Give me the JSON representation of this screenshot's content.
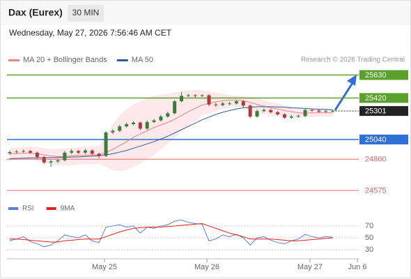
{
  "header": {
    "title": "Dax (Eurex)",
    "interval": "30 MIN",
    "timestamp": "Wednesday, May 27, 2026 7:56:46 AM CET",
    "copyright": "Research © 2026 Trading Central"
  },
  "chart_data": [
    {
      "type": "candlestick",
      "up_color": "#3a7d3a",
      "down_color": "#b03a3a",
      "open": [
        24915,
        24925,
        24930,
        24935,
        24920,
        24880,
        24830,
        24840,
        24850,
        24920,
        24935,
        24920,
        24940,
        24910,
        24890,
        25105,
        25120,
        25160,
        25180,
        25195,
        25140,
        25200,
        25215,
        25250,
        25280,
        25390,
        25440,
        25445,
        25440,
        25445,
        25360,
        25355,
        25370,
        25370,
        25390,
        25350,
        25250,
        25300,
        25310,
        25290,
        25270,
        25240,
        25250,
        25255,
        25310,
        25305,
        25295,
        25300
      ],
      "high": [
        24940,
        24945,
        24950,
        24945,
        24930,
        24890,
        24855,
        24865,
        24935,
        24955,
        24945,
        24955,
        24950,
        24920,
        25115,
        25135,
        25175,
        25195,
        25210,
        25205,
        25215,
        25230,
        25265,
        25295,
        25400,
        25475,
        25460,
        25455,
        25455,
        25455,
        25375,
        25385,
        25385,
        25400,
        25400,
        25360,
        25315,
        25325,
        25320,
        25300,
        25280,
        25265,
        25270,
        25325,
        25320,
        25315,
        25310,
        25310
      ],
      "low": [
        24900,
        24910,
        24920,
        24910,
        24865,
        24815,
        24790,
        24825,
        24840,
        24905,
        24905,
        24905,
        24895,
        24870,
        24880,
        25090,
        25110,
        25150,
        25170,
        25125,
        25130,
        25190,
        25205,
        25240,
        25270,
        25380,
        25430,
        25425,
        25430,
        25345,
        25340,
        25345,
        25355,
        25360,
        25335,
        25235,
        25240,
        25290,
        25280,
        25260,
        25230,
        25230,
        25240,
        25245,
        25295,
        25285,
        25285,
        25290
      ],
      "close": [
        24925,
        24930,
        24935,
        24920,
        24880,
        24830,
        24840,
        24850,
        24920,
        24935,
        24920,
        24940,
        24910,
        24890,
        25105,
        25120,
        25160,
        25180,
        25195,
        25140,
        25200,
        25215,
        25250,
        25280,
        25390,
        25440,
        25445,
        25440,
        25445,
        25360,
        25355,
        25370,
        25370,
        25390,
        25350,
        25250,
        25300,
        25310,
        25290,
        25270,
        25240,
        25250,
        25255,
        25310,
        25305,
        25295,
        25300,
        25301
      ],
      "lines": [
        {
          "name": "MA 20 + Bollinger Bands",
          "color": "#f08080",
          "band_color": "#fde3e3",
          "values": [
            24910,
            24912,
            24915,
            24915,
            24910,
            24900,
            24890,
            24885,
            24885,
            24890,
            24895,
            24895,
            24900,
            24900,
            24920,
            24950,
            24985,
            25020,
            25060,
            25090,
            25120,
            25150,
            25175,
            25195,
            25225,
            25260,
            25295,
            25325,
            25355,
            25370,
            25385,
            25395,
            25400,
            25400,
            25395,
            25380,
            25360,
            25345,
            25330,
            25320,
            25305,
            25295,
            25285,
            25280,
            25285,
            25285,
            25285,
            25285
          ],
          "upper": [
            24960,
            24965,
            24970,
            24975,
            24975,
            24960,
            24955,
            24955,
            24960,
            24965,
            24970,
            24970,
            24975,
            24980,
            25080,
            25180,
            25260,
            25320,
            25360,
            25390,
            25420,
            25440,
            25450,
            25460,
            25470,
            25480,
            25490,
            25495,
            25490,
            25480,
            25470,
            25460,
            25445,
            25440,
            25435,
            25430,
            25420,
            25400,
            25380,
            25370,
            25355,
            25345,
            25335,
            25325,
            25320,
            25320,
            25320,
            25320
          ],
          "lower": [
            24860,
            24860,
            24860,
            24855,
            24845,
            24830,
            24815,
            24805,
            24800,
            24805,
            24810,
            24815,
            24815,
            24815,
            24790,
            24760,
            24750,
            24760,
            24790,
            24820,
            24860,
            24900,
            24950,
            25000,
            25050,
            25110,
            25160,
            25210,
            25260,
            25280,
            25300,
            25320,
            25335,
            25340,
            25330,
            25300,
            25280,
            25270,
            25260,
            25255,
            25250,
            25245,
            25240,
            25240,
            25245,
            25250,
            25250,
            25250
          ]
        },
        {
          "name": "MA 50",
          "color": "#2c5aa0",
          "values": [
            24865,
            24868,
            24870,
            24872,
            24873,
            24874,
            24875,
            24876,
            24878,
            24880,
            24882,
            24885,
            24888,
            24890,
            24900,
            24910,
            24925,
            24940,
            24960,
            24980,
            25000,
            25020,
            25045,
            25070,
            25100,
            25130,
            25160,
            25190,
            25220,
            25245,
            25270,
            25290,
            25305,
            25320,
            25330,
            25335,
            25340,
            25340,
            25340,
            25338,
            25335,
            25330,
            25328,
            25325,
            25320,
            25318,
            25315,
            25312
          ]
        }
      ],
      "levels": [
        {
          "value": 25630,
          "color": "#5aa02c",
          "style": "box"
        },
        {
          "value": 25420,
          "color": "#5aa02c",
          "style": "box"
        },
        {
          "value": 25301,
          "color": "#222222",
          "style": "box",
          "dotted": true
        },
        {
          "value": 25040,
          "color": "#2f6fd6",
          "style": "box"
        },
        {
          "value": 24860,
          "color": "#e06666",
          "style": "text"
        },
        {
          "value": 24575,
          "color": "#e06666",
          "style": "text"
        }
      ],
      "xlim": [
        -0.4,
        50.8
      ],
      "ylim": [
        24530,
        25710
      ]
    },
    {
      "type": "line",
      "series": [
        {
          "name": "RSI",
          "color": "#5b7fd6",
          "values": [
            45,
            48,
            52,
            44,
            40,
            35,
            38,
            45,
            55,
            52,
            50,
            55,
            45,
            42,
            68,
            70,
            72,
            68,
            70,
            58,
            68,
            66,
            70,
            72,
            78,
            80,
            76,
            74,
            73,
            45,
            48,
            55,
            52,
            56,
            50,
            38,
            50,
            52,
            46,
            42,
            40,
            45,
            48,
            56,
            52,
            50,
            52,
            51
          ]
        },
        {
          "name": "9MA",
          "color": "#e02020",
          "values": [
            48,
            48,
            47,
            46,
            45,
            44,
            43,
            43,
            45,
            46,
            47,
            48,
            48,
            48,
            52,
            56,
            60,
            63,
            66,
            67,
            68,
            68,
            68,
            69,
            70,
            71,
            72,
            73,
            74,
            70,
            66,
            62,
            58,
            55,
            52,
            48,
            48,
            48,
            48,
            47,
            46,
            45,
            45,
            46,
            47,
            48,
            49,
            50
          ]
        }
      ],
      "xlim": [
        -0.4,
        50.8
      ],
      "ylim": [
        16,
        84
      ],
      "yticks": [
        70,
        50,
        30
      ],
      "xticks": [
        {
          "value": 13.8,
          "label": "May 25"
        },
        {
          "value": 28.7,
          "label": "May 26"
        },
        {
          "value": 43.7,
          "label": "May 27"
        },
        {
          "value": 50.6,
          "label": "Jun 6"
        }
      ]
    }
  ]
}
